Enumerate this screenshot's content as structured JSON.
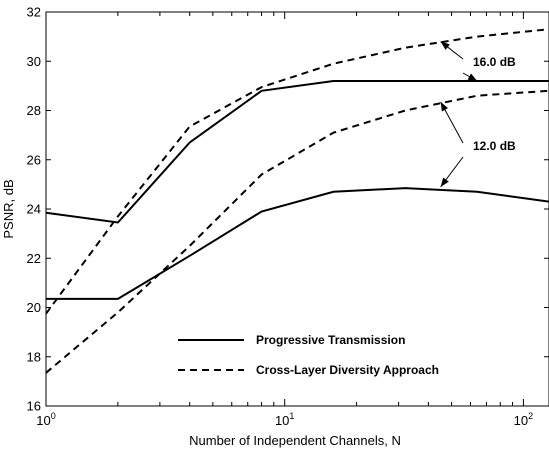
{
  "chart_data": {
    "type": "line",
    "title": "",
    "xlabel": "Number of Independent Channels, N",
    "ylabel": "PSNR, dB",
    "xscale": "log",
    "xlim": [
      1,
      128
    ],
    "ylim": [
      16,
      32
    ],
    "grid": false,
    "legend_position": "bottom-center",
    "x_ticks": [
      {
        "value": 1,
        "base": "10",
        "exp": "0"
      },
      {
        "value": 10,
        "base": "10",
        "exp": "1"
      },
      {
        "value": 100,
        "base": "10",
        "exp": "2"
      }
    ],
    "y_ticks": [
      16,
      18,
      20,
      22,
      24,
      26,
      28,
      30,
      32
    ],
    "series": [
      {
        "name": "Progressive Transmission",
        "style": "solid",
        "snr": "16.0 dB",
        "x": [
          1,
          2,
          4,
          8,
          16,
          32,
          64,
          128
        ],
        "y": [
          23.85,
          23.45,
          26.7,
          28.8,
          29.2,
          29.2,
          29.2,
          29.2
        ]
      },
      {
        "name": "Cross-Layer Diversity Approach",
        "style": "dashed",
        "snr": "16.0 dB",
        "x": [
          1,
          2,
          4,
          8,
          16,
          32,
          64,
          128
        ],
        "y": [
          19.75,
          23.7,
          27.35,
          28.95,
          29.9,
          30.55,
          31.0,
          31.3
        ]
      },
      {
        "name": "Progressive Transmission",
        "style": "solid",
        "snr": "12.0 dB",
        "x": [
          1,
          2,
          4,
          8,
          16,
          32,
          64,
          128
        ],
        "y": [
          20.35,
          20.35,
          22.1,
          23.9,
          24.7,
          24.85,
          24.7,
          24.3
        ]
      },
      {
        "name": "Cross-Layer Diversity Approach",
        "style": "dashed",
        "snr": "12.0 dB",
        "x": [
          1,
          2,
          4,
          8,
          16,
          32,
          64,
          128
        ],
        "y": [
          17.35,
          19.8,
          22.5,
          25.4,
          27.1,
          28.0,
          28.6,
          28.8
        ]
      }
    ],
    "annotations": [
      {
        "text": "16.0 dB",
        "points_to": [
          [
            45,
            30.8
          ],
          [
            64,
            29.2
          ]
        ]
      },
      {
        "text": "12.0 dB",
        "points_to": [
          [
            45,
            28.35
          ],
          [
            45,
            24.9
          ]
        ]
      }
    ],
    "legend": [
      {
        "label": "Progressive Transmission",
        "style": "solid"
      },
      {
        "label": "Cross-Layer Diversity Approach",
        "style": "dashed"
      }
    ]
  }
}
